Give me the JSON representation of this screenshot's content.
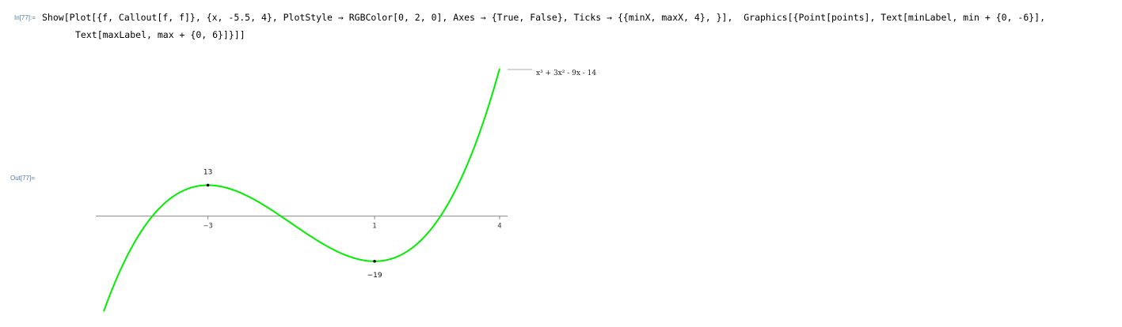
{
  "input": {
    "label": "In[77]:=",
    "line1": "Show[Plot[{f, Callout[f, f]}, {x, -5.5, 4}, PlotStyle → RGBColor[0, 2, 0], Axes → {True, False}, Ticks → {{minX, maxX, 4}, }],  Graphics[{Point[points], Text[minLabel, min + {0, -6}],",
    "line2": "Text[maxLabel, max + {0, 6}]}]]"
  },
  "output": {
    "label": "Out[77]="
  },
  "colors": {
    "curve": "#00ee00",
    "axis": "#888888",
    "legend_line": "#aaaaaa",
    "cell_label": "#4f7ca8"
  },
  "chart_data": {
    "type": "line",
    "function": "x^3 + 3x^2 - 9x - 14",
    "x_range": [
      -5.5,
      4
    ],
    "y_range": [
      -31.375,
      62
    ],
    "axes": {
      "x": true,
      "y": false
    },
    "x_ticks": [
      {
        "value": -3,
        "label": "-3"
      },
      {
        "value": 1,
        "label": "1"
      },
      {
        "value": 4,
        "label": "4"
      }
    ],
    "points": [
      {
        "x": -3,
        "y": 13,
        "label": "13",
        "label_position": "above"
      },
      {
        "x": 1,
        "y": -19,
        "label": "-19",
        "label_position": "below"
      }
    ],
    "legend": {
      "entries": [
        "x³ + 3x² - 9x - 14"
      ],
      "placement": "right"
    }
  }
}
